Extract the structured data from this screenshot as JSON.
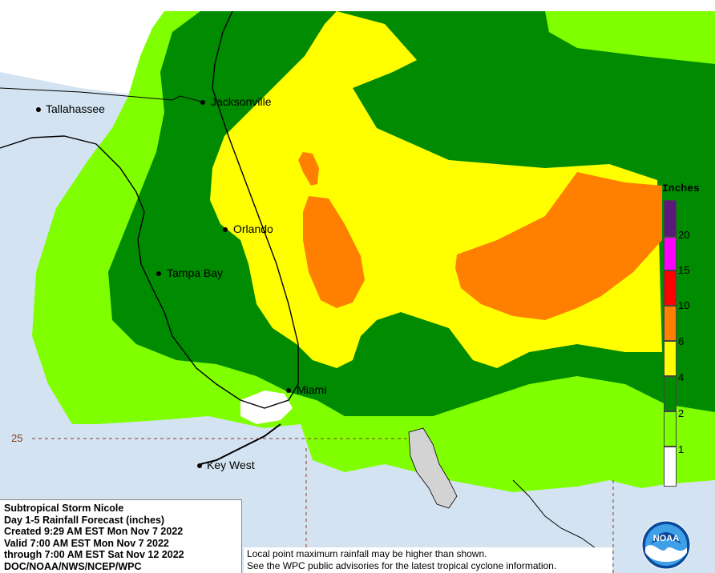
{
  "map": {
    "cities": [
      {
        "name": "Tallahassee",
        "key": "tallahassee"
      },
      {
        "name": "Jacksonville",
        "key": "jacksonville"
      },
      {
        "name": "Orlando",
        "key": "orlando"
      },
      {
        "name": "Tampa Bay",
        "key": "tampa-bay"
      },
      {
        "name": "Miami",
        "key": "miami"
      },
      {
        "name": "Key West",
        "key": "key-west"
      }
    ],
    "latitude_label": "25",
    "colors": {
      "water": "#d4e3f2",
      "land": "#ffffff",
      "bahamas": "#d3d3d3",
      "lt_green": "#7fff00",
      "dk_green": "#008b00",
      "yellow": "#ffff00",
      "orange": "#ff8000",
      "border": "#000000",
      "lat_line": "#8a3b1a"
    }
  },
  "legend": {
    "title": "Inches",
    "ticks": [
      "20",
      "15",
      "10",
      "6",
      "4",
      "2",
      "1"
    ],
    "swatches": [
      {
        "color": "#5a1a7a"
      },
      {
        "color": "#ff00ff"
      },
      {
        "color": "#ff0000"
      },
      {
        "color": "#ff8000"
      },
      {
        "color": "#ffff00"
      },
      {
        "color": "#008b00"
      },
      {
        "color": "#7fff00"
      },
      {
        "color": "#ffffff"
      }
    ]
  },
  "info": {
    "line1": "Subtropical Storm Nicole",
    "line2": "Day 1-5 Rainfall Forecast (inches)",
    "line3": "Created 9:29 AM EST Mon Nov 7 2022",
    "line4": "Valid 7:00 AM EST Mon Nov 7 2022",
    "line5": "through 7:00 AM EST Sat Nov 12 2022",
    "line6": "DOC/NOAA/NWS/NCEP/WPC"
  },
  "note": {
    "line1": "Local point maximum rainfall may be higher than shown.",
    "line2": "See the WPC public advisories for the latest tropical cyclone information."
  },
  "logo": {
    "text": "NOAA"
  }
}
